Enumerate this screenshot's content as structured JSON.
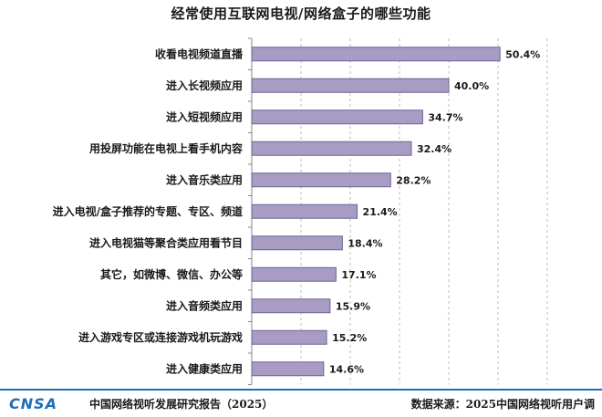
{
  "chart_data": {
    "type": "bar",
    "orientation": "horizontal",
    "title": "经常使用互联网电视/网络盒子的哪些功能",
    "categories": [
      "收看电视频道直播",
      "进入长视频应用",
      "进入短视频应用",
      "用投屏功能在电视上看手机内容",
      "进入音乐类应用",
      "进入电视/盒子推荐的专题、专区、频道",
      "进入电视猫等聚合类应用看节目",
      "其它，如微博、微信、办公等",
      "进入音频类应用",
      "进入游戏专区或连接游戏机玩游戏",
      "进入健康类应用"
    ],
    "values": [
      50.4,
      40.0,
      34.7,
      32.4,
      28.2,
      21.4,
      18.4,
      17.1,
      15.9,
      15.2,
      14.6
    ],
    "value_labels": [
      "50.4%",
      "40.0%",
      "34.7%",
      "32.4%",
      "28.2%",
      "21.4%",
      "18.4%",
      "17.1%",
      "15.9%",
      "15.2%",
      "14.6%"
    ],
    "xlim": [
      0,
      60
    ],
    "grid": true,
    "bar_color": "#a89cc4",
    "bar_border_color": "#6f6393"
  },
  "footer": {
    "logo_text": "CNSA",
    "left_text": "中国网络视听发展研究报告（2025）",
    "right_text": "数据来源：2025中国网络视听用户调"
  },
  "colors": {
    "accent": "#1d6fb8",
    "grid": "#bdbdbd"
  }
}
